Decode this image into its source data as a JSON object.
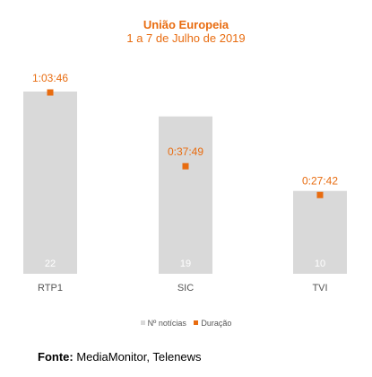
{
  "chart_data": {
    "type": "bar",
    "title": "União Europeia",
    "subtitle": "1 a 7 de Julho de 2019",
    "categories": [
      "RTP1",
      "SIC",
      "TVI"
    ],
    "series": [
      {
        "name": "Nº notícias",
        "type": "bar",
        "values": [
          22,
          19,
          10
        ]
      },
      {
        "name": "Duração",
        "type": "scatter",
        "values": [
          3826,
          2269,
          1662
        ],
        "labels": [
          "1:03:46",
          "0:37:49",
          "0:27:42"
        ]
      }
    ],
    "legend_position": "bottom",
    "grid": false
  },
  "colors": {
    "accent": "#e86c10",
    "bar": "#d9d9d9"
  },
  "source": {
    "label": "Fonte:",
    "text": " MediaMonitor, Telenews"
  }
}
